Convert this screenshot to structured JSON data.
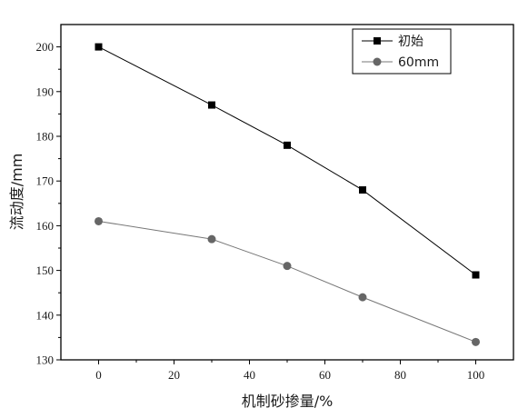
{
  "chart_data": {
    "type": "line",
    "xlabel": "机制砂掺量/%",
    "ylabel": "流动度/mm",
    "xlim": [
      -10,
      110
    ],
    "ylim": [
      130,
      205
    ],
    "xticks": [
      0,
      20,
      40,
      60,
      80,
      100
    ],
    "yticks": [
      130,
      140,
      150,
      160,
      170,
      180,
      190,
      200
    ],
    "x": [
      0,
      30,
      50,
      70,
      100
    ],
    "series": [
      {
        "name": "初始",
        "marker": "square",
        "color": "#000000",
        "values": [
          200,
          187,
          178,
          168,
          149
        ]
      },
      {
        "name": "60mm",
        "marker": "circle",
        "color": "#666666",
        "values": [
          161,
          157,
          151,
          144,
          134
        ]
      }
    ],
    "legend_position": "top-right",
    "grid": false
  }
}
